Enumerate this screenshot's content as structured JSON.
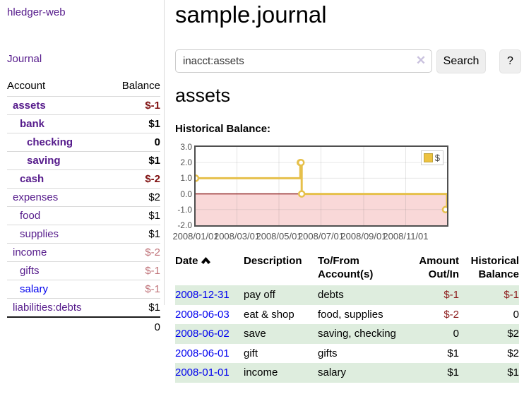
{
  "app": {
    "brand": "hledger-web",
    "nav_journal": "Journal"
  },
  "sidebar": {
    "header": {
      "account": "Account",
      "balance": "Balance"
    },
    "accounts": [
      {
        "name": "assets",
        "depth": 0,
        "balance": "$-1",
        "bold": true,
        "amount_class": "neg-strong",
        "link_blue": false
      },
      {
        "name": "bank",
        "depth": 1,
        "balance": "$1",
        "bold": true,
        "amount_class": "",
        "link_blue": false
      },
      {
        "name": "checking",
        "depth": 2,
        "balance": "0",
        "bold": true,
        "amount_class": "",
        "link_blue": false
      },
      {
        "name": "saving",
        "depth": 2,
        "balance": "$1",
        "bold": true,
        "amount_class": "",
        "link_blue": false
      },
      {
        "name": "cash",
        "depth": 1,
        "balance": "$-2",
        "bold": true,
        "amount_class": "neg-strong",
        "link_blue": false
      },
      {
        "name": "expenses",
        "depth": 0,
        "balance": "$2",
        "bold": false,
        "amount_class": "",
        "link_blue": false
      },
      {
        "name": "food",
        "depth": 1,
        "balance": "$1",
        "bold": false,
        "amount_class": "",
        "link_blue": false
      },
      {
        "name": "supplies",
        "depth": 1,
        "balance": "$1",
        "bold": false,
        "amount_class": "",
        "link_blue": false
      },
      {
        "name": "income",
        "depth": 0,
        "balance": "$-2",
        "bold": false,
        "amount_class": "neg-soft",
        "link_blue": false
      },
      {
        "name": "gifts",
        "depth": 1,
        "balance": "$-1",
        "bold": false,
        "amount_class": "neg-soft",
        "link_blue": false
      },
      {
        "name": "salary",
        "depth": 1,
        "balance": "$-1",
        "bold": false,
        "amount_class": "neg-soft",
        "link_blue": true
      },
      {
        "name": "liabilities:debts",
        "depth": 0,
        "balance": "$1",
        "bold": false,
        "amount_class": "",
        "link_blue": false
      }
    ],
    "total": "0"
  },
  "main": {
    "title": "sample.journal",
    "search": {
      "value": "inacct:assets",
      "clear_icon": "✕",
      "button": "Search",
      "help_button": "?"
    },
    "account_heading": "assets",
    "chart_heading": "Historical Balance:"
  },
  "chart_data": {
    "type": "line",
    "step": true,
    "title": "Historical Balance:",
    "legend": "$",
    "legend_position": "top-right",
    "grid": true,
    "x_range": [
      "2008-01-01",
      "2008-12-31"
    ],
    "ylim": [
      -2.0,
      3.0
    ],
    "y_ticks": [
      3.0,
      2.0,
      1.0,
      0.0,
      -1.0,
      -2.0
    ],
    "x_ticks": [
      {
        "date": "2008-01-01",
        "label": "2008/01/01"
      },
      {
        "date": "2008-03-01",
        "label": "2008/03/01"
      },
      {
        "date": "2008-05-01",
        "label": "2008/05/01"
      },
      {
        "date": "2008-07-01",
        "label": "2008/07/01"
      },
      {
        "date": "2008-09-01",
        "label": "2008/09/01"
      },
      {
        "date": "2008-11-01",
        "label": "2008/11/01"
      }
    ],
    "series": [
      {
        "name": "$",
        "points": [
          {
            "date": "2008-01-01",
            "value": 1
          },
          {
            "date": "2008-06-01",
            "value": 2
          },
          {
            "date": "2008-06-02",
            "value": 2
          },
          {
            "date": "2008-06-03",
            "value": 0
          },
          {
            "date": "2008-12-31",
            "value": -1
          }
        ]
      }
    ],
    "colors": {
      "line": "#E6C04B",
      "marker_fill": "#FFFFFF",
      "negative_fill": "#F9D8D8",
      "zero_line": "#8B1A1A",
      "grid": "#E3E3E3",
      "border": "#4F4F4F",
      "legend_square": "#EDC240"
    }
  },
  "register": {
    "columns": [
      {
        "label": "Date",
        "sortable": true
      },
      {
        "label": "Description"
      },
      {
        "label": "To/From Account(s)"
      },
      {
        "label": "Amount Out/In"
      },
      {
        "label": "Historical Balance"
      }
    ],
    "rows": [
      {
        "date": "2008-12-31",
        "description": "pay off",
        "accounts": "debts",
        "amount": "$-1",
        "amount_neg": true,
        "balance": "$-1",
        "balance_neg": true
      },
      {
        "date": "2008-06-03",
        "description": "eat & shop",
        "accounts": "food, supplies",
        "amount": "$-2",
        "amount_neg": true,
        "balance": "0",
        "balance_neg": false
      },
      {
        "date": "2008-06-02",
        "description": "save",
        "accounts": "saving, checking",
        "amount": "0",
        "amount_neg": false,
        "balance": "$2",
        "balance_neg": false
      },
      {
        "date": "2008-06-01",
        "description": "gift",
        "accounts": "gifts",
        "amount": "$1",
        "amount_neg": false,
        "balance": "$2",
        "balance_neg": false
      },
      {
        "date": "2008-01-01",
        "description": "income",
        "accounts": "salary",
        "amount": "$1",
        "amount_neg": false,
        "balance": "$1",
        "balance_neg": false
      }
    ]
  }
}
